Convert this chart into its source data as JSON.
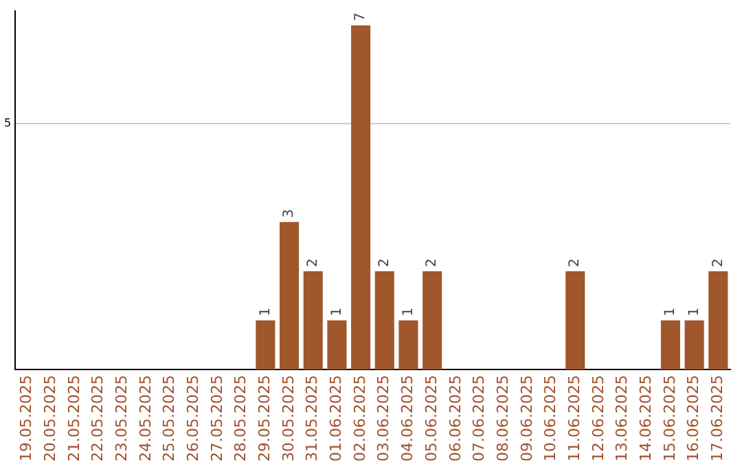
{
  "chart_data": {
    "type": "bar",
    "categories": [
      "19.05.2025",
      "20.05.2025",
      "21.05.2025",
      "22.05.2025",
      "23.05.2025",
      "24.05.2025",
      "25.05.2025",
      "26.05.2025",
      "27.05.2025",
      "28.05.2025",
      "29.05.2025",
      "30.05.2025",
      "31.05.2025",
      "01.06.2025",
      "02.06.2025",
      "03.06.2025",
      "04.06.2025",
      "05.06.2025",
      "06.06.2025",
      "07.06.2025",
      "08.06.2025",
      "09.06.2025",
      "10.06.2025",
      "11.06.2025",
      "12.06.2025",
      "13.06.2025",
      "14.06.2025",
      "15.06.2025",
      "16.06.2025",
      "17.06.2025"
    ],
    "values": [
      0,
      0,
      0,
      0,
      0,
      0,
      0,
      0,
      0,
      0,
      1,
      3,
      2,
      1,
      7,
      2,
      1,
      2,
      0,
      0,
      0,
      0,
      0,
      2,
      0,
      0,
      0,
      1,
      1,
      2
    ],
    "value_labels": [
      null,
      null,
      null,
      null,
      null,
      null,
      null,
      null,
      null,
      null,
      "1",
      "3",
      "2",
      "1",
      "7",
      "2",
      "1",
      "2",
      null,
      null,
      null,
      null,
      null,
      "2",
      null,
      null,
      null,
      "1",
      "1",
      "2"
    ],
    "color": "#a0572b",
    "ylim": [
      0,
      7.3
    ],
    "yticks": [
      5
    ],
    "grid": "y",
    "legend": false
  }
}
